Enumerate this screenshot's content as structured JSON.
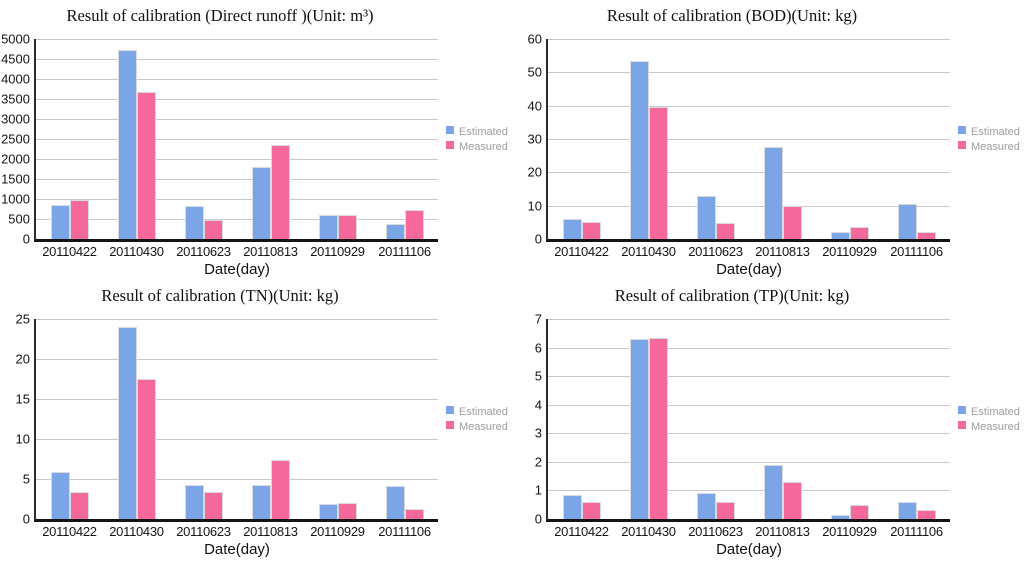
{
  "page": {
    "background": "#ffffff"
  },
  "colors": {
    "estimated": "#7CA5E8",
    "measured": "#F6699C",
    "gridline": "#c9c9c9",
    "axis": "#141414",
    "legend_text": "#9e9e9e"
  },
  "chart_data": [
    {
      "type": "bar",
      "title": "Result of calibration (Direct runoff )(Unit: m³)",
      "xlabel": "Date(day)",
      "ylabel": "",
      "categories": [
        "20110422",
        "20110430",
        "20110623",
        "20110813",
        "20110929",
        "20111106"
      ],
      "series": [
        {
          "name": "Estimated",
          "color": "#7CA5E8",
          "values": [
            850,
            4720,
            830,
            1800,
            600,
            380
          ]
        },
        {
          "name": "Measured",
          "color": "#F6699C",
          "values": [
            970,
            3670,
            480,
            2340,
            600,
            730
          ]
        }
      ],
      "ylim": [
        0,
        5000
      ],
      "ytick": 500,
      "grid": true,
      "legend_position": "right"
    },
    {
      "type": "bar",
      "title": "Result of calibration (BOD)(Unit: kg)",
      "xlabel": "Date(day)",
      "ylabel": "",
      "categories": [
        "20110422",
        "20110430",
        "20110623",
        "20110813",
        "20110929",
        "20111106"
      ],
      "series": [
        {
          "name": "Estimated",
          "color": "#7CA5E8",
          "values": [
            6,
            53.5,
            13,
            27.5,
            2,
            10.5
          ]
        },
        {
          "name": "Measured",
          "color": "#F6699C",
          "values": [
            5,
            39.7,
            4.8,
            10,
            3.5,
            2.2
          ]
        }
      ],
      "ylim": [
        0,
        60
      ],
      "ytick": 10,
      "grid": true,
      "legend_position": "right"
    },
    {
      "type": "bar",
      "title": "Result of calibration (TN)(Unit: kg)",
      "xlabel": "Date(day)",
      "ylabel": "",
      "categories": [
        "20110422",
        "20110430",
        "20110623",
        "20110813",
        "20110929",
        "20111106"
      ],
      "series": [
        {
          "name": "Estimated",
          "color": "#7CA5E8",
          "values": [
            5.9,
            24,
            4.3,
            4.2,
            1.9,
            4.1
          ]
        },
        {
          "name": "Measured",
          "color": "#F6699C",
          "values": [
            3.4,
            17.5,
            3.4,
            7.4,
            2.0,
            1.2
          ]
        }
      ],
      "ylim": [
        0,
        25
      ],
      "ytick": 5,
      "grid": true,
      "legend_position": "right"
    },
    {
      "type": "bar",
      "title": "Result of calibration (TP)(Unit: kg)",
      "xlabel": "Date(day)",
      "ylabel": "",
      "categories": [
        "20110422",
        "20110430",
        "20110623",
        "20110813",
        "20110929",
        "20111106"
      ],
      "series": [
        {
          "name": "Estimated",
          "color": "#7CA5E8",
          "values": [
            0.83,
            6.3,
            0.9,
            1.88,
            0.15,
            0.58
          ]
        },
        {
          "name": "Measured",
          "color": "#F6699C",
          "values": [
            0.6,
            6.35,
            0.6,
            1.28,
            0.5,
            0.3
          ]
        }
      ],
      "ylim": [
        0,
        7
      ],
      "ytick": 1,
      "grid": true,
      "legend_position": "right"
    }
  ]
}
